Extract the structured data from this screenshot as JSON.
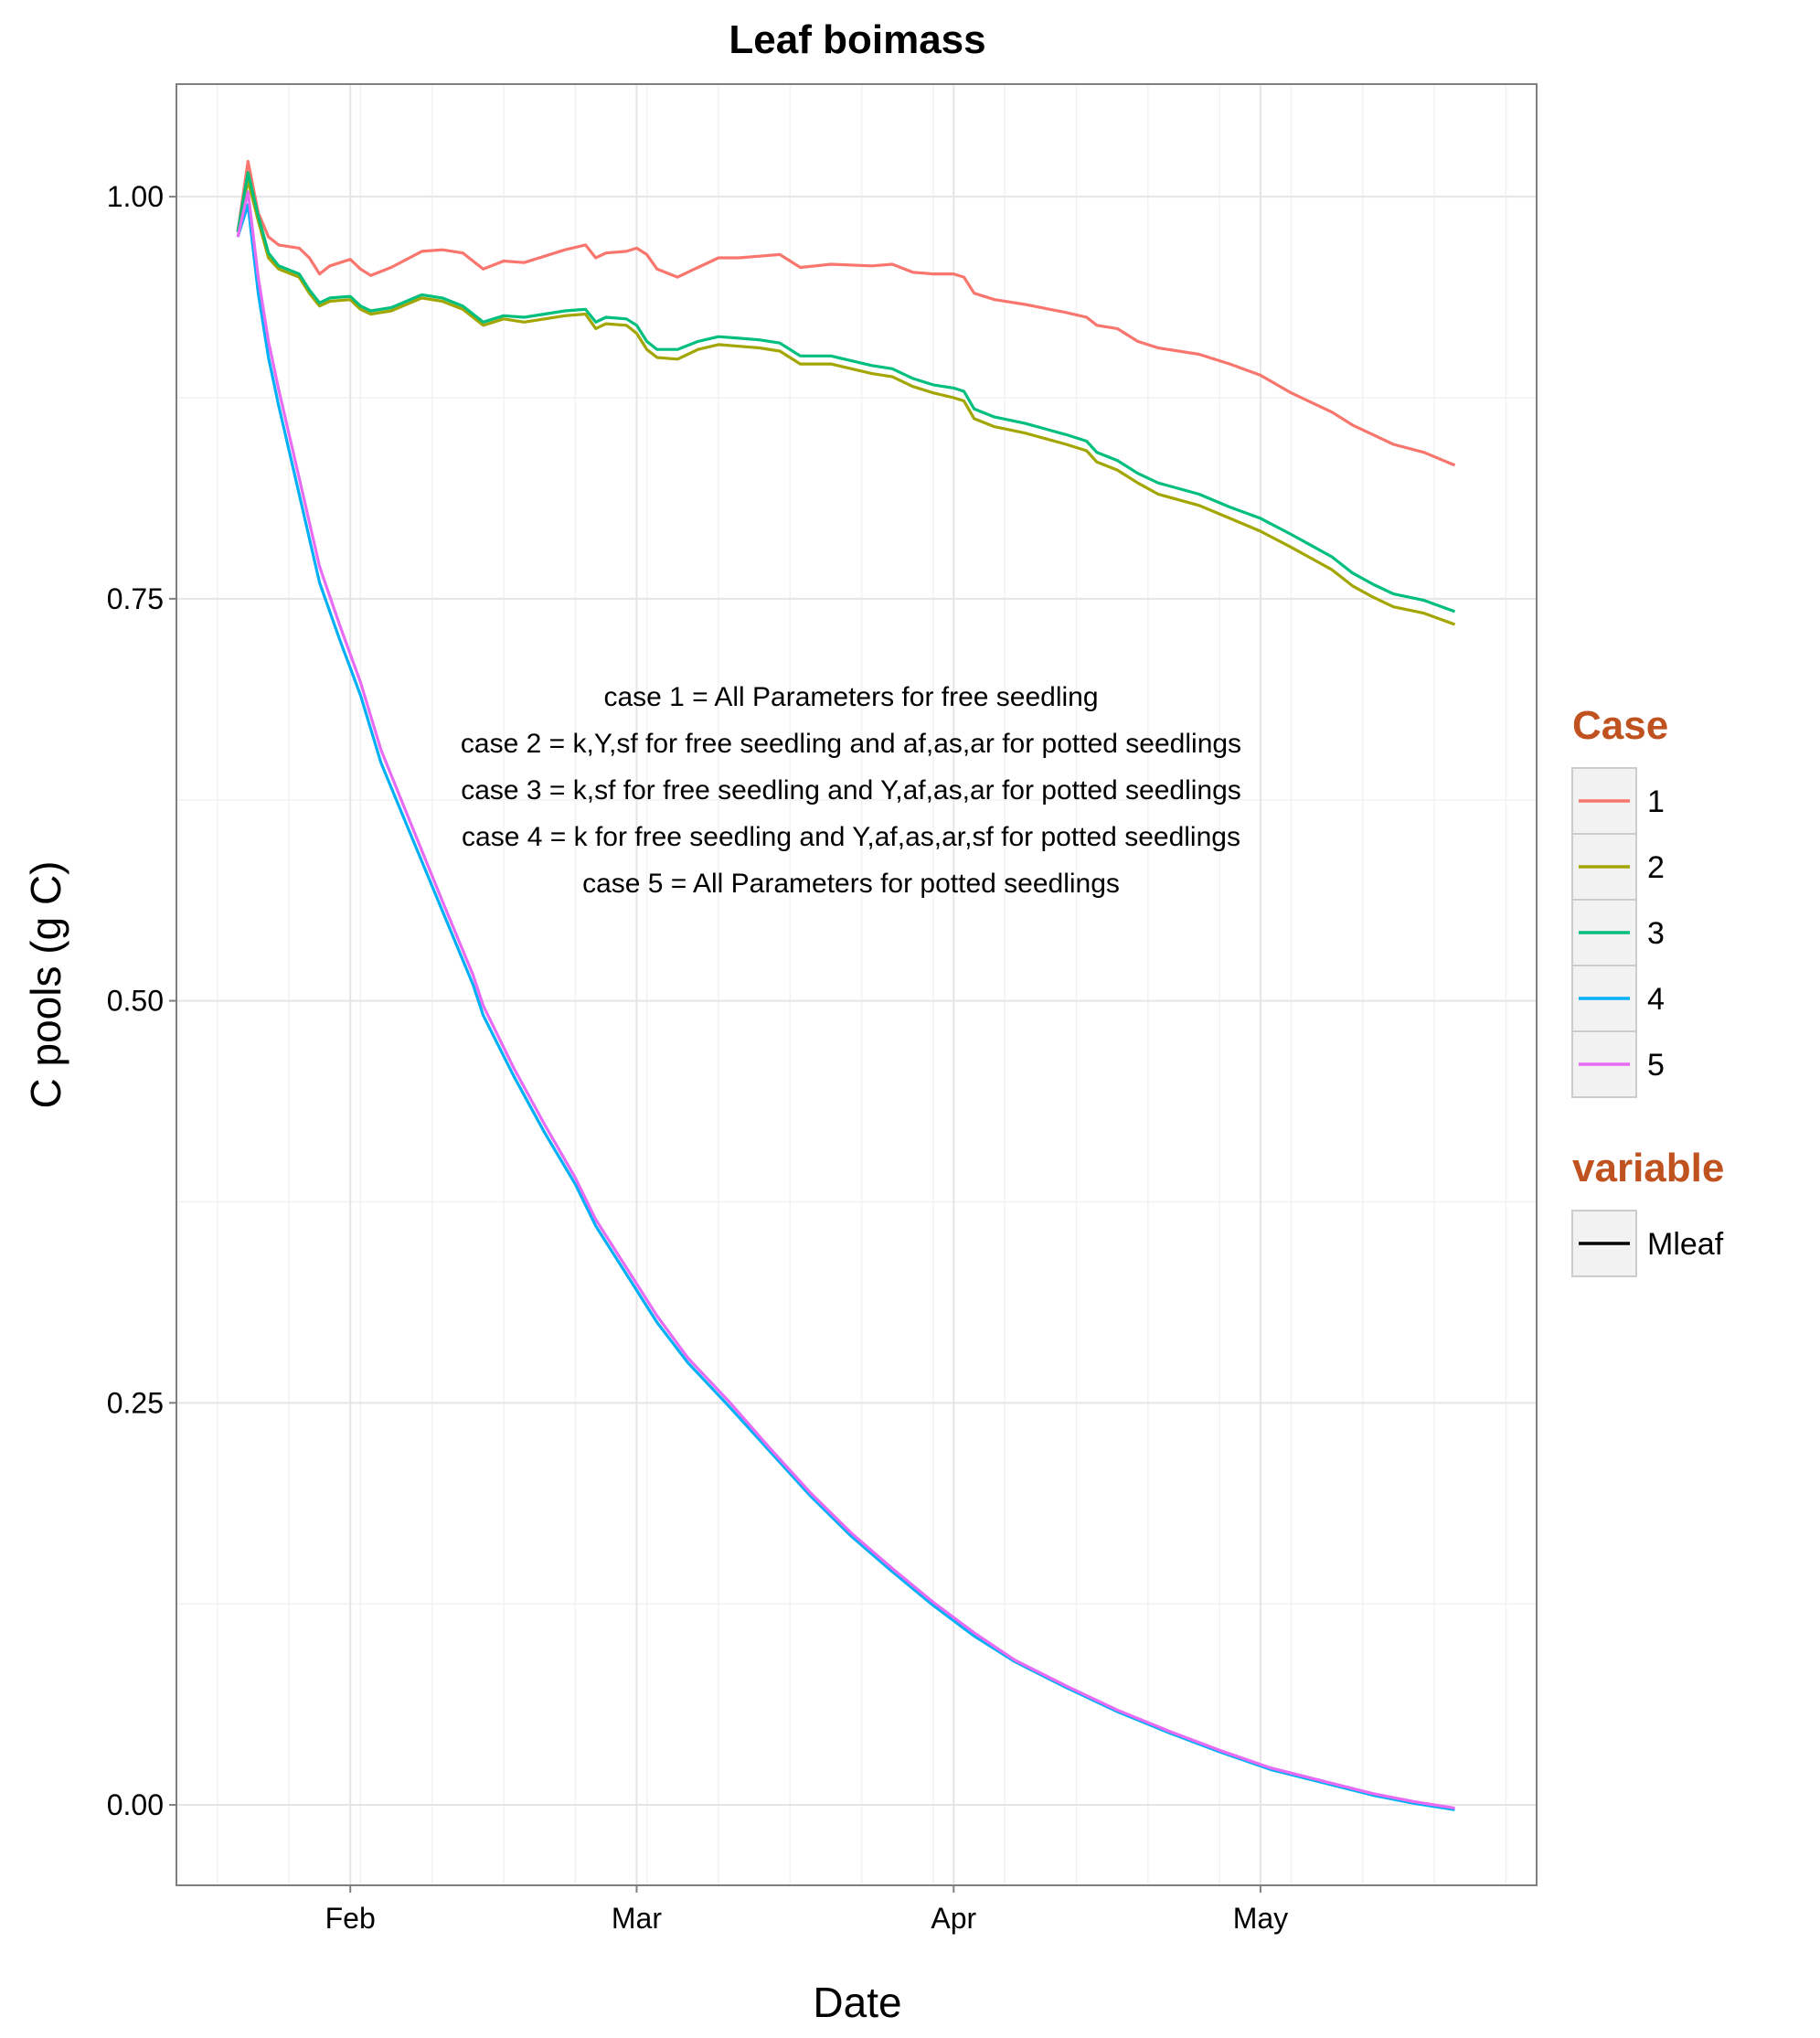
{
  "chart_data": {
    "type": "line",
    "title": "Leaf boimass",
    "xlabel": "Date",
    "ylabel": "C pools (g C)",
    "x_ticks": [
      "Feb",
      "Mar",
      "Apr",
      "May"
    ],
    "y_ticks": [
      "0.00",
      "0.25",
      "0.50",
      "0.75",
      "1.00"
    ],
    "ylim": [
      -0.05,
      1.07
    ],
    "grid": true,
    "legend_position": "right",
    "annotations": [
      "case 1 = All Parameters for free seedling",
      "case 2 = k,Y,sf for free seedling and af,as,ar for potted seedlings",
      "case 3 = k,sf for free seedling and Y,af,as,ar for potted seedlings",
      "case 4 = k for free seedling and Y,af,as,ar,sf for potted seedlings",
      "case 5 = All Parameters for potted seedlings"
    ],
    "legends": [
      {
        "title": "Case",
        "entries": [
          {
            "label": "1",
            "color": "#F8766D"
          },
          {
            "label": "2",
            "color": "#A3A500"
          },
          {
            "label": "3",
            "color": "#00BF7D"
          },
          {
            "label": "4",
            "color": "#00B0F6"
          },
          {
            "label": "5",
            "color": "#E76BF3"
          }
        ]
      },
      {
        "title": "variable",
        "entries": [
          {
            "label": "Mleaf",
            "color": "#000000"
          }
        ]
      }
    ],
    "series": [
      {
        "color": "#F8766D",
        "points": [
          [
            "2014-01-21",
            0.978
          ],
          [
            "2014-01-22",
            1.022
          ],
          [
            "2014-01-23",
            0.99
          ],
          [
            "2014-01-24",
            0.975
          ],
          [
            "2014-01-25",
            0.97
          ],
          [
            "2014-01-27",
            0.968
          ],
          [
            "2014-01-28",
            0.962
          ],
          [
            "2014-01-29",
            0.952
          ],
          [
            "2014-01-30",
            0.957
          ],
          [
            "2014-02-01",
            0.961
          ],
          [
            "2014-02-02",
            0.955
          ],
          [
            "2014-02-03",
            0.951
          ],
          [
            "2014-02-05",
            0.956
          ],
          [
            "2014-02-08",
            0.966
          ],
          [
            "2014-02-10",
            0.967
          ],
          [
            "2014-02-12",
            0.965
          ],
          [
            "2014-02-14",
            0.955
          ],
          [
            "2014-02-16",
            0.96
          ],
          [
            "2014-02-18",
            0.959
          ],
          [
            "2014-02-20",
            0.963
          ],
          [
            "2014-02-22",
            0.967
          ],
          [
            "2014-02-24",
            0.97
          ],
          [
            "2014-02-25",
            0.962
          ],
          [
            "2014-02-26",
            0.965
          ],
          [
            "2014-02-28",
            0.966
          ],
          [
            "2014-03-01",
            0.968
          ],
          [
            "2014-03-02",
            0.964
          ],
          [
            "2014-03-03",
            0.955
          ],
          [
            "2014-03-05",
            0.95
          ],
          [
            "2014-03-07",
            0.956
          ],
          [
            "2014-03-09",
            0.962
          ],
          [
            "2014-03-11",
            0.962
          ],
          [
            "2014-03-13",
            0.963
          ],
          [
            "2014-03-15",
            0.964
          ],
          [
            "2014-03-17",
            0.956
          ],
          [
            "2014-03-20",
            0.958
          ],
          [
            "2014-03-24",
            0.957
          ],
          [
            "2014-03-26",
            0.958
          ],
          [
            "2014-03-28",
            0.953
          ],
          [
            "2014-03-30",
            0.952
          ],
          [
            "2014-04-01",
            0.952
          ],
          [
            "2014-04-02",
            0.95
          ],
          [
            "2014-04-03",
            0.94
          ],
          [
            "2014-04-05",
            0.936
          ],
          [
            "2014-04-08",
            0.933
          ],
          [
            "2014-04-12",
            0.928
          ],
          [
            "2014-04-14",
            0.925
          ],
          [
            "2014-04-15",
            0.92
          ],
          [
            "2014-04-17",
            0.918
          ],
          [
            "2014-04-19",
            0.91
          ],
          [
            "2014-04-21",
            0.906
          ],
          [
            "2014-04-25",
            0.902
          ],
          [
            "2014-04-28",
            0.896
          ],
          [
            "2014-05-01",
            0.889
          ],
          [
            "2014-05-04",
            0.878
          ],
          [
            "2014-05-06",
            0.872
          ],
          [
            "2014-05-08",
            0.866
          ],
          [
            "2014-05-10",
            0.858
          ],
          [
            "2014-05-12",
            0.852
          ],
          [
            "2014-05-14",
            0.846
          ],
          [
            "2014-05-17",
            0.841
          ],
          [
            "2014-05-20",
            0.833
          ]
        ]
      },
      {
        "color": "#A3A500",
        "points": [
          [
            "2014-01-21",
            0.978
          ],
          [
            "2014-01-22",
            1.01
          ],
          [
            "2014-01-23",
            0.985
          ],
          [
            "2014-01-24",
            0.962
          ],
          [
            "2014-01-25",
            0.955
          ],
          [
            "2014-01-27",
            0.95
          ],
          [
            "2014-01-28",
            0.94
          ],
          [
            "2014-01-29",
            0.932
          ],
          [
            "2014-01-30",
            0.935
          ],
          [
            "2014-02-01",
            0.936
          ],
          [
            "2014-02-02",
            0.93
          ],
          [
            "2014-02-03",
            0.927
          ],
          [
            "2014-02-05",
            0.929
          ],
          [
            "2014-02-08",
            0.937
          ],
          [
            "2014-02-10",
            0.935
          ],
          [
            "2014-02-12",
            0.93
          ],
          [
            "2014-02-14",
            0.92
          ],
          [
            "2014-02-16",
            0.924
          ],
          [
            "2014-02-18",
            0.922
          ],
          [
            "2014-02-20",
            0.924
          ],
          [
            "2014-02-22",
            0.926
          ],
          [
            "2014-02-24",
            0.927
          ],
          [
            "2014-02-25",
            0.918
          ],
          [
            "2014-02-26",
            0.921
          ],
          [
            "2014-02-28",
            0.92
          ],
          [
            "2014-03-01",
            0.915
          ],
          [
            "2014-03-02",
            0.905
          ],
          [
            "2014-03-03",
            0.9
          ],
          [
            "2014-03-05",
            0.899
          ],
          [
            "2014-03-07",
            0.905
          ],
          [
            "2014-03-09",
            0.908
          ],
          [
            "2014-03-11",
            0.907
          ],
          [
            "2014-03-13",
            0.906
          ],
          [
            "2014-03-15",
            0.904
          ],
          [
            "2014-03-17",
            0.896
          ],
          [
            "2014-03-20",
            0.896
          ],
          [
            "2014-03-24",
            0.89
          ],
          [
            "2014-03-26",
            0.888
          ],
          [
            "2014-03-28",
            0.882
          ],
          [
            "2014-03-30",
            0.878
          ],
          [
            "2014-04-01",
            0.875
          ],
          [
            "2014-04-02",
            0.873
          ],
          [
            "2014-04-03",
            0.862
          ],
          [
            "2014-04-05",
            0.857
          ],
          [
            "2014-04-08",
            0.853
          ],
          [
            "2014-04-12",
            0.846
          ],
          [
            "2014-04-14",
            0.842
          ],
          [
            "2014-04-15",
            0.835
          ],
          [
            "2014-04-17",
            0.83
          ],
          [
            "2014-04-19",
            0.822
          ],
          [
            "2014-04-21",
            0.815
          ],
          [
            "2014-04-25",
            0.808
          ],
          [
            "2014-04-28",
            0.8
          ],
          [
            "2014-05-01",
            0.792
          ],
          [
            "2014-05-04",
            0.782
          ],
          [
            "2014-05-06",
            0.775
          ],
          [
            "2014-05-08",
            0.768
          ],
          [
            "2014-05-10",
            0.758
          ],
          [
            "2014-05-12",
            0.751
          ],
          [
            "2014-05-14",
            0.745
          ],
          [
            "2014-05-17",
            0.741
          ],
          [
            "2014-05-20",
            0.734
          ]
        ]
      },
      {
        "color": "#00BF7D",
        "points": [
          [
            "2014-01-21",
            0.978
          ],
          [
            "2014-01-22",
            1.015
          ],
          [
            "2014-01-23",
            0.988
          ],
          [
            "2014-01-24",
            0.965
          ],
          [
            "2014-01-25",
            0.957
          ],
          [
            "2014-01-27",
            0.952
          ],
          [
            "2014-01-28",
            0.942
          ],
          [
            "2014-01-29",
            0.934
          ],
          [
            "2014-01-30",
            0.937
          ],
          [
            "2014-02-01",
            0.938
          ],
          [
            "2014-02-02",
            0.932
          ],
          [
            "2014-02-03",
            0.929
          ],
          [
            "2014-02-05",
            0.931
          ],
          [
            "2014-02-08",
            0.939
          ],
          [
            "2014-02-10",
            0.937
          ],
          [
            "2014-02-12",
            0.932
          ],
          [
            "2014-02-14",
            0.922
          ],
          [
            "2014-02-16",
            0.926
          ],
          [
            "2014-02-18",
            0.925
          ],
          [
            "2014-02-20",
            0.927
          ],
          [
            "2014-02-22",
            0.929
          ],
          [
            "2014-02-24",
            0.93
          ],
          [
            "2014-02-25",
            0.922
          ],
          [
            "2014-02-26",
            0.925
          ],
          [
            "2014-02-28",
            0.924
          ],
          [
            "2014-03-01",
            0.92
          ],
          [
            "2014-03-02",
            0.91
          ],
          [
            "2014-03-03",
            0.905
          ],
          [
            "2014-03-05",
            0.905
          ],
          [
            "2014-03-07",
            0.91
          ],
          [
            "2014-03-09",
            0.913
          ],
          [
            "2014-03-11",
            0.912
          ],
          [
            "2014-03-13",
            0.911
          ],
          [
            "2014-03-15",
            0.909
          ],
          [
            "2014-03-17",
            0.901
          ],
          [
            "2014-03-20",
            0.901
          ],
          [
            "2014-03-24",
            0.895
          ],
          [
            "2014-03-26",
            0.893
          ],
          [
            "2014-03-28",
            0.887
          ],
          [
            "2014-03-30",
            0.883
          ],
          [
            "2014-04-01",
            0.881
          ],
          [
            "2014-04-02",
            0.879
          ],
          [
            "2014-04-03",
            0.868
          ],
          [
            "2014-04-05",
            0.863
          ],
          [
            "2014-04-08",
            0.859
          ],
          [
            "2014-04-12",
            0.852
          ],
          [
            "2014-04-14",
            0.848
          ],
          [
            "2014-04-15",
            0.841
          ],
          [
            "2014-04-17",
            0.836
          ],
          [
            "2014-04-19",
            0.828
          ],
          [
            "2014-04-21",
            0.822
          ],
          [
            "2014-04-25",
            0.815
          ],
          [
            "2014-04-28",
            0.807
          ],
          [
            "2014-05-01",
            0.8
          ],
          [
            "2014-05-04",
            0.79
          ],
          [
            "2014-05-06",
            0.783
          ],
          [
            "2014-05-08",
            0.776
          ],
          [
            "2014-05-10",
            0.766
          ],
          [
            "2014-05-12",
            0.759
          ],
          [
            "2014-05-14",
            0.753
          ],
          [
            "2014-05-17",
            0.749
          ],
          [
            "2014-05-20",
            0.742
          ]
        ]
      },
      {
        "color": "#00B0F6",
        "points": [
          [
            "2014-01-21",
            0.975
          ],
          [
            "2014-01-22",
            0.995
          ],
          [
            "2014-01-23",
            0.94
          ],
          [
            "2014-01-24",
            0.9
          ],
          [
            "2014-01-25",
            0.87
          ],
          [
            "2014-01-27",
            0.815
          ],
          [
            "2014-01-29",
            0.76
          ],
          [
            "2014-01-31",
            0.724
          ],
          [
            "2014-02-02",
            0.69
          ],
          [
            "2014-02-04",
            0.648
          ],
          [
            "2014-02-07",
            0.602
          ],
          [
            "2014-02-10",
            0.556
          ],
          [
            "2014-02-13",
            0.51
          ],
          [
            "2014-02-14",
            0.491
          ],
          [
            "2014-02-17",
            0.453
          ],
          [
            "2014-02-20",
            0.418
          ],
          [
            "2014-02-23",
            0.386
          ],
          [
            "2014-02-25",
            0.36
          ],
          [
            "2014-02-28",
            0.33
          ],
          [
            "2014-03-03",
            0.3
          ],
          [
            "2014-03-06",
            0.275
          ],
          [
            "2014-03-10",
            0.248
          ],
          [
            "2014-03-14",
            0.22
          ],
          [
            "2014-03-18",
            0.192
          ],
          [
            "2014-03-22",
            0.167
          ],
          [
            "2014-03-26",
            0.145
          ],
          [
            "2014-03-30",
            0.124
          ],
          [
            "2014-04-03",
            0.105
          ],
          [
            "2014-04-07",
            0.089
          ],
          [
            "2014-04-12",
            0.073
          ],
          [
            "2014-04-17",
            0.058
          ],
          [
            "2014-04-22",
            0.045
          ],
          [
            "2014-04-27",
            0.033
          ],
          [
            "2014-05-02",
            0.022
          ],
          [
            "2014-05-07",
            0.014
          ],
          [
            "2014-05-12",
            0.006
          ],
          [
            "2014-05-16",
            0.001
          ],
          [
            "2014-05-20",
            -0.003
          ]
        ]
      },
      {
        "color": "#E76BF3",
        "points": [
          [
            "2014-01-21",
            0.975
          ],
          [
            "2014-01-22",
            1.003
          ],
          [
            "2014-01-23",
            0.95
          ],
          [
            "2014-01-24",
            0.91
          ],
          [
            "2014-01-25",
            0.88
          ],
          [
            "2014-01-27",
            0.825
          ],
          [
            "2014-01-29",
            0.77
          ],
          [
            "2014-01-31",
            0.733
          ],
          [
            "2014-02-02",
            0.698
          ],
          [
            "2014-02-04",
            0.656
          ],
          [
            "2014-02-07",
            0.609
          ],
          [
            "2014-02-10",
            0.562
          ],
          [
            "2014-02-13",
            0.516
          ],
          [
            "2014-02-14",
            0.497
          ],
          [
            "2014-02-17",
            0.458
          ],
          [
            "2014-02-20",
            0.423
          ],
          [
            "2014-02-23",
            0.39
          ],
          [
            "2014-02-25",
            0.364
          ],
          [
            "2014-02-28",
            0.334
          ],
          [
            "2014-03-03",
            0.304
          ],
          [
            "2014-03-06",
            0.278
          ],
          [
            "2014-03-10",
            0.251
          ],
          [
            "2014-03-14",
            0.222
          ],
          [
            "2014-03-18",
            0.194
          ],
          [
            "2014-03-22",
            0.169
          ],
          [
            "2014-03-26",
            0.147
          ],
          [
            "2014-03-30",
            0.126
          ],
          [
            "2014-04-03",
            0.107
          ],
          [
            "2014-04-07",
            0.09
          ],
          [
            "2014-04-12",
            0.074
          ],
          [
            "2014-04-17",
            0.059
          ],
          [
            "2014-04-22",
            0.046
          ],
          [
            "2014-04-27",
            0.034
          ],
          [
            "2014-05-02",
            0.023
          ],
          [
            "2014-05-07",
            0.015
          ],
          [
            "2014-05-12",
            0.007
          ],
          [
            "2014-05-16",
            0.002
          ],
          [
            "2014-05-20",
            -0.002
          ]
        ]
      }
    ]
  }
}
